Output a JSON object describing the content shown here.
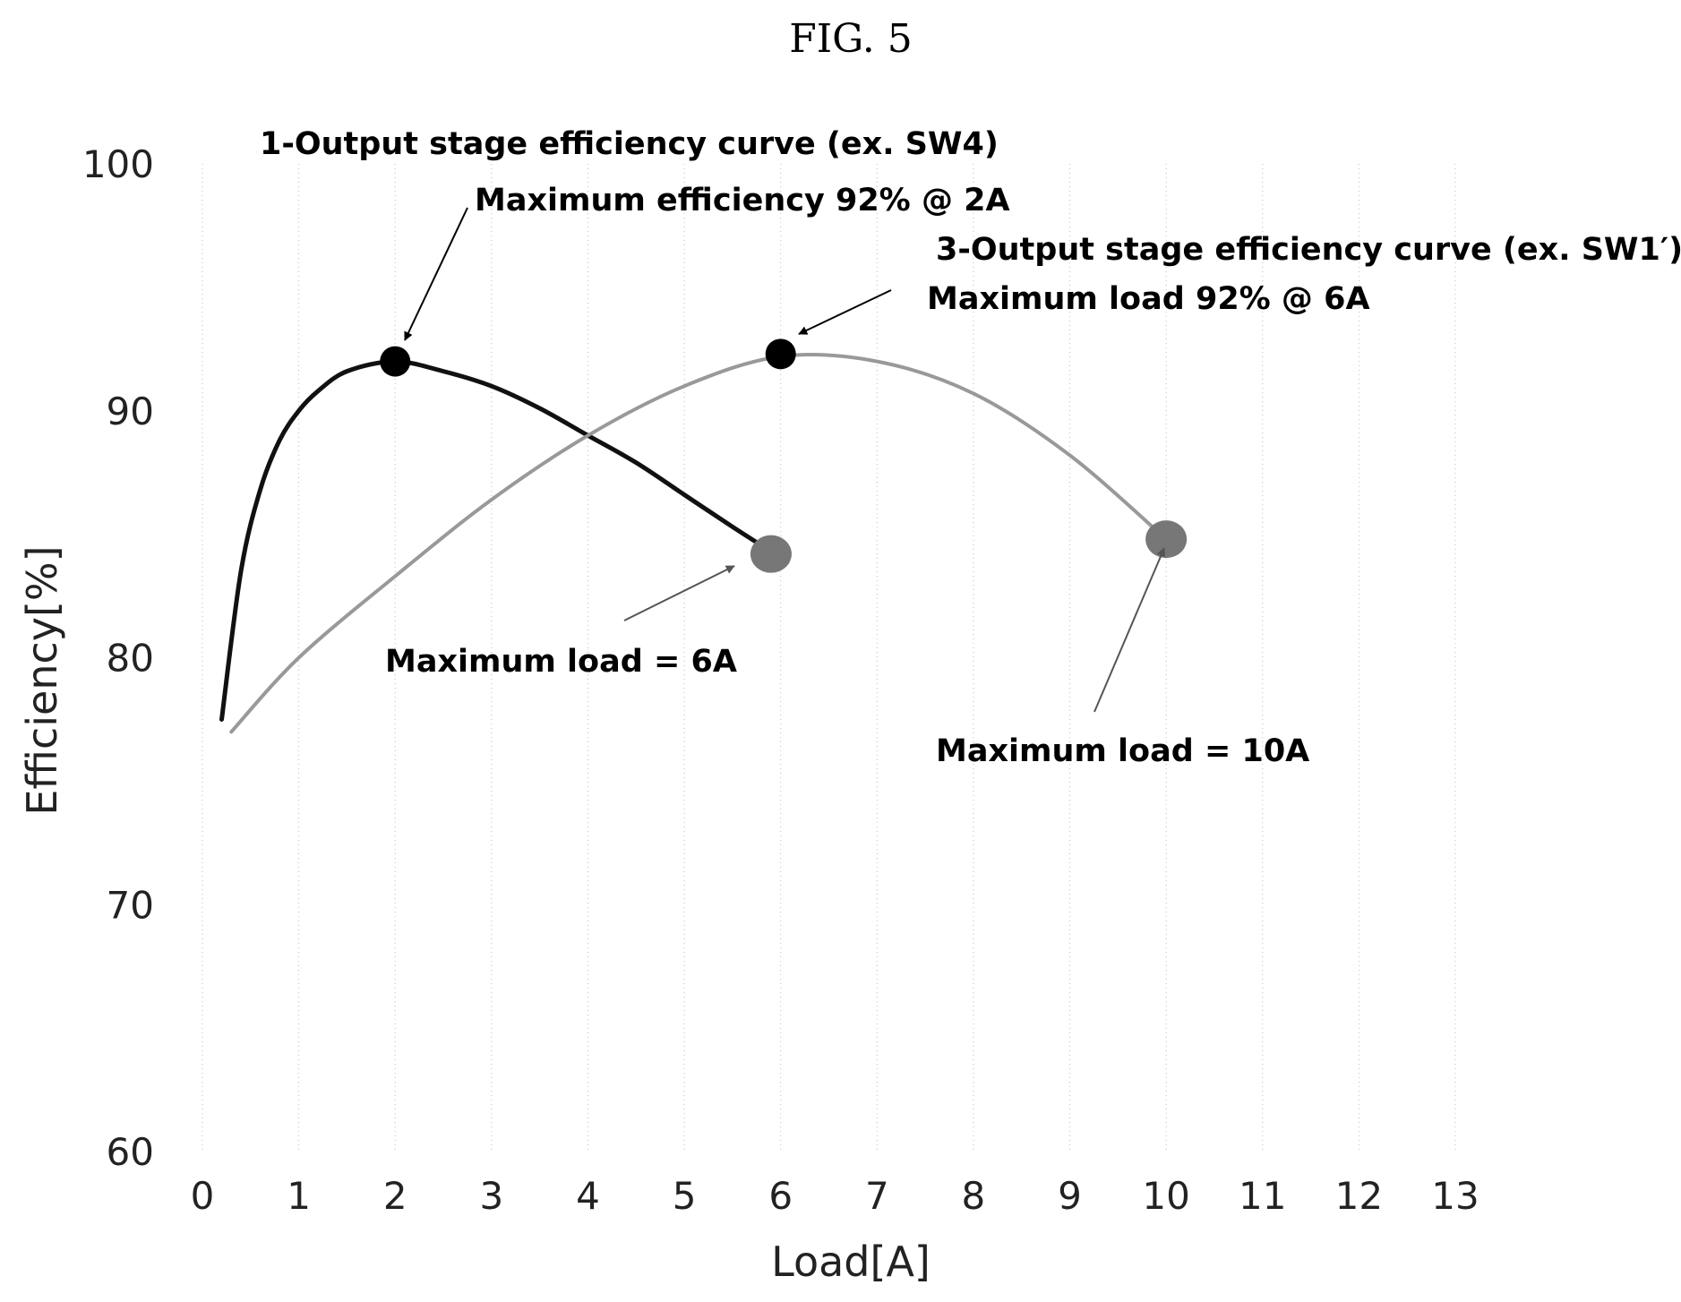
{
  "figure": {
    "title": "FIG. 5"
  },
  "chart_data": {
    "type": "line",
    "xlabel": "Load[A]",
    "ylabel": "Efficiency[%]",
    "xlim": [
      0,
      13
    ],
    "ylim": [
      60,
      100
    ],
    "x_ticks": [
      "0",
      "1",
      "2",
      "3",
      "4",
      "5",
      "6",
      "7",
      "8",
      "9",
      "10",
      "11",
      "12",
      "13"
    ],
    "y_ticks": [
      "60",
      "70",
      "80",
      "90",
      "100"
    ],
    "grid": "dotted vertical lines",
    "series": [
      {
        "name": "1-Output stage efficiency curve (ex. SW4)",
        "color": "#111111",
        "x": [
          0.2,
          0.4,
          0.6,
          0.8,
          1.0,
          1.2,
          1.5,
          2.0,
          2.5,
          3.0,
          3.5,
          4.0,
          4.5,
          5.0,
          5.5,
          5.9
        ],
        "y": [
          77.5,
          83.5,
          86.8,
          88.8,
          90.0,
          90.8,
          91.6,
          92.0,
          91.6,
          91.0,
          90.1,
          89.0,
          87.9,
          86.6,
          85.3,
          84.3
        ],
        "end_marker": {
          "x": 5.9,
          "y": 84.2,
          "color": "#777777"
        },
        "peak_marker": {
          "x": 2.0,
          "y": 92.0,
          "color": "#000000"
        }
      },
      {
        "name": "3-Output stage efficiency curve (ex. SW1′)",
        "color": "#999999",
        "x": [
          0.3,
          1,
          2,
          3,
          4,
          5,
          6,
          7,
          8,
          9,
          10
        ],
        "y": [
          77.0,
          80.0,
          83.3,
          86.4,
          89.0,
          91.0,
          92.2,
          92.0,
          90.7,
          88.2,
          84.8
        ],
        "end_marker": {
          "x": 10.0,
          "y": 84.8,
          "color": "#777777"
        },
        "peak_marker": {
          "x": 6.0,
          "y": 92.3,
          "color": "#000000"
        }
      }
    ],
    "annotations": {
      "curve1_label": "1-Output stage efficiency curve (ex. SW4)",
      "curve1_peak": "Maximum efficiency 92% @ 2A",
      "curve3_label": "3-Output stage efficiency curve (ex. SW1′)",
      "curve3_peak": "Maximum load 92% @ 6A",
      "curve1_max": "Maximum load = 6A",
      "curve3_max": "Maximum load = 10A"
    }
  }
}
